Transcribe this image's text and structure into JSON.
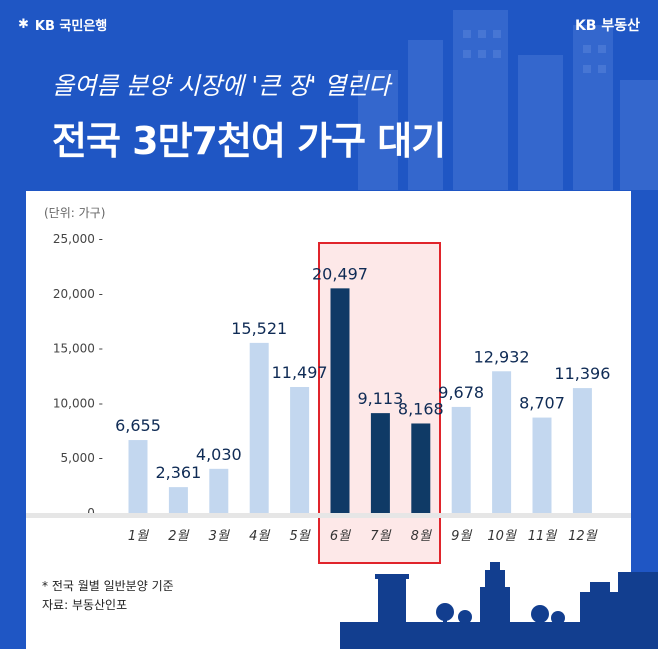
{
  "header": {
    "bank_logo": "KB 국민은행",
    "brand_logo": "KB 부동산",
    "subtitle": "올여름 분양 시장에 '큰 장' 열린다",
    "title": "전국 3만7천여 가구 대기"
  },
  "colors": {
    "background": "#1f56c4",
    "light_bar": "#c3d7ef",
    "dark_bar": "#0f3a66",
    "highlight": "#e0242b"
  },
  "chart_data": {
    "type": "bar",
    "unit_label": "(단위: 가구)",
    "categories": [
      "1월",
      "2월",
      "3월",
      "4월",
      "5월",
      "6월",
      "7월",
      "8월",
      "9월",
      "10월",
      "11월",
      "12월"
    ],
    "values": [
      6655,
      2361,
      4030,
      15521,
      11497,
      20497,
      9113,
      8168,
      9678,
      12932,
      8707,
      11396
    ],
    "value_labels": [
      "6,655",
      "2,361",
      "4,030",
      "15,521",
      "11,497",
      "20,497",
      "9,113",
      "8,168",
      "9,678",
      "12,932",
      "8,707",
      "11,396"
    ],
    "highlighted": [
      "6월",
      "7월",
      "8월"
    ],
    "y_ticks": [
      0,
      5000,
      10000,
      15000,
      20000,
      25000
    ],
    "y_tick_labels": [
      "0 -",
      "5,000 -",
      "10,000 -",
      "15,000 -",
      "20,000 -",
      "25,000 -"
    ],
    "ylim": [
      0,
      25000
    ]
  },
  "footer": {
    "note": "* 전국 월별 일반분양 기준",
    "source": "자료: 부동산인포"
  }
}
